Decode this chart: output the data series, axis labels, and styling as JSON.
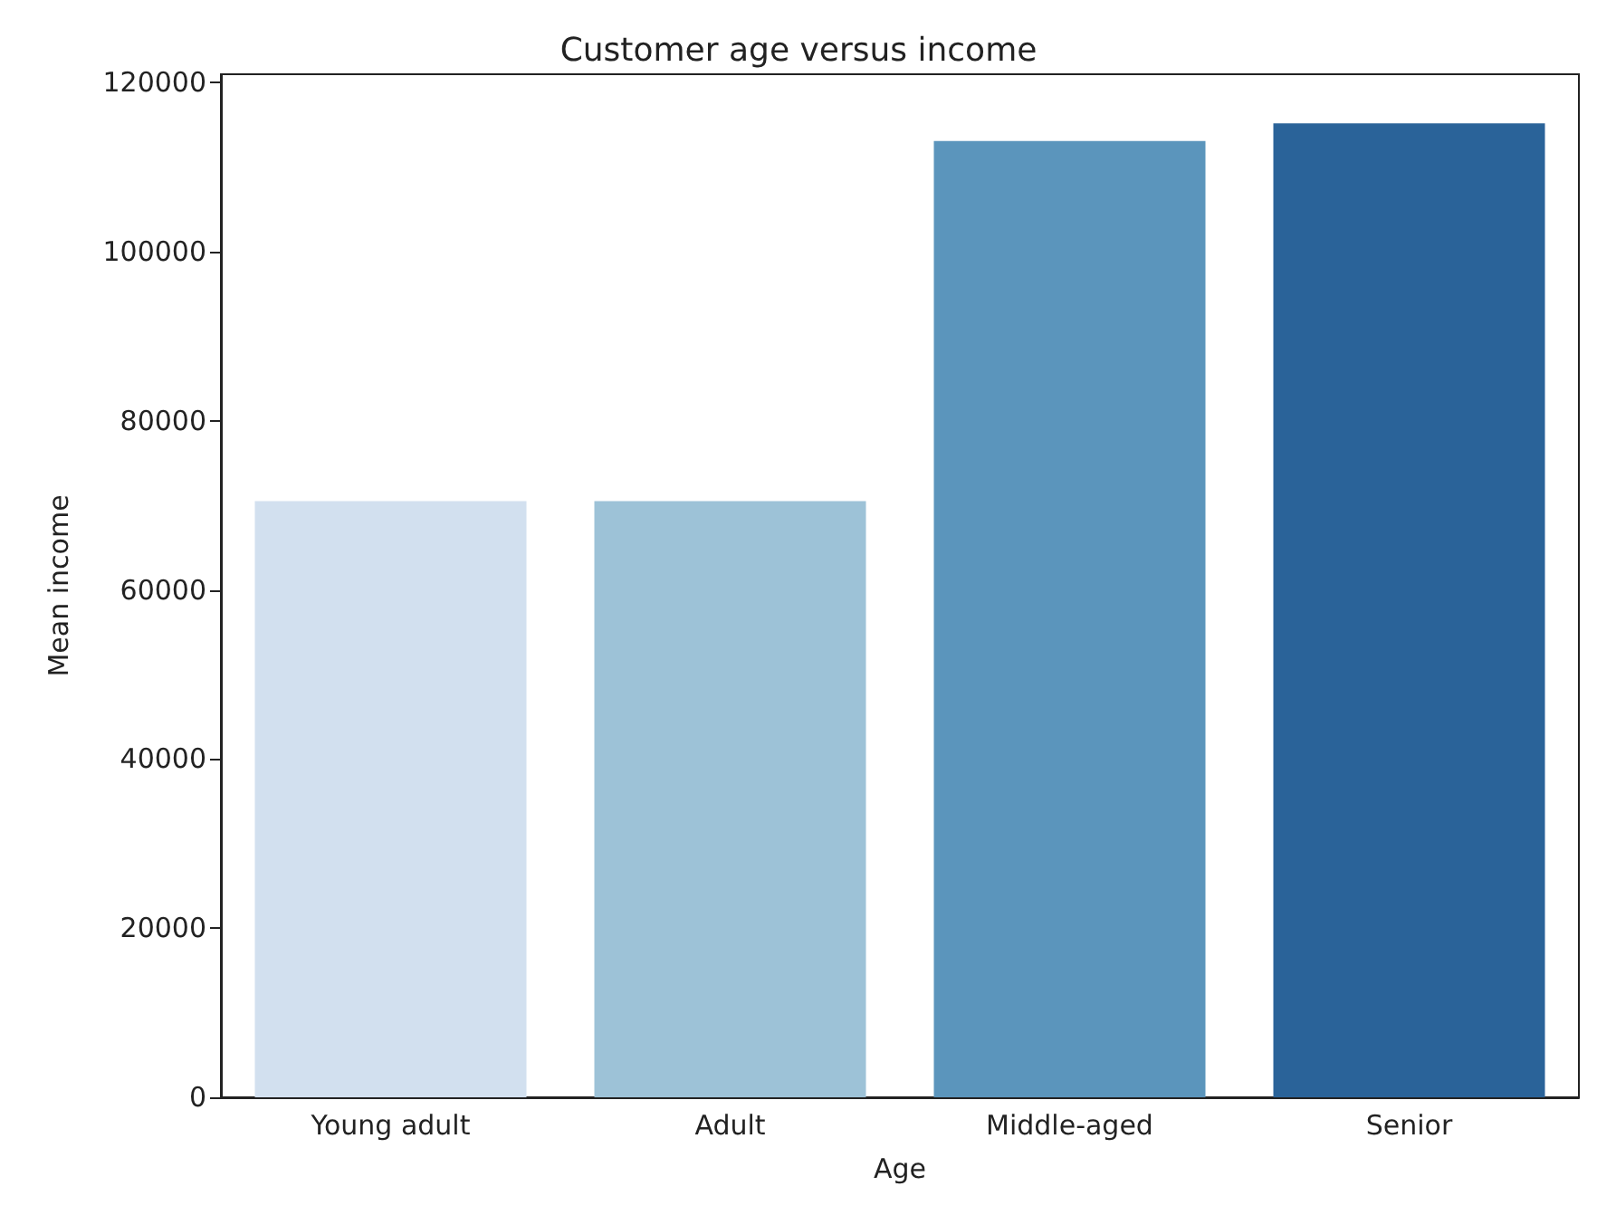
{
  "chart_data": {
    "type": "bar",
    "title": "Customer age versus income",
    "xlabel": "Age",
    "ylabel": "Mean income",
    "categories": [
      "Young adult",
      "Adult",
      "Middle-aged",
      "Senior"
    ],
    "values": [
      70500,
      70500,
      113100,
      115200
    ],
    "colors": [
      "#d2e0ef",
      "#9dc2d7",
      "#5b95bc",
      "#2a6399"
    ],
    "ylim": [
      0,
      121000
    ],
    "yticks": [
      0,
      20000,
      40000,
      60000,
      80000,
      100000,
      120000
    ],
    "grid": false
  }
}
